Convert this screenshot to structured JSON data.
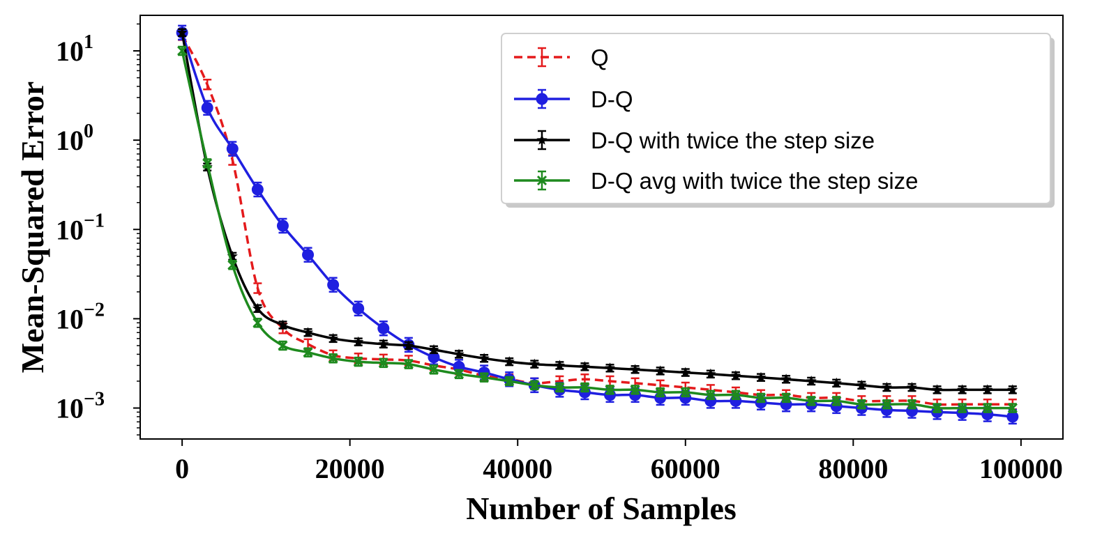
{
  "chart_data": {
    "type": "line",
    "title": "",
    "xlabel": "Number of Samples",
    "ylabel": "Mean-Squared Error",
    "xlim": [
      -5000,
      105000
    ],
    "ylim": [
      0.00045,
      25
    ],
    "yscale": "log",
    "grid": false,
    "legend_position": "top-right",
    "x_ticks": [
      {
        "value": 0,
        "label": "0"
      },
      {
        "value": 20000,
        "label": "20000"
      },
      {
        "value": 40000,
        "label": "40000"
      },
      {
        "value": 60000,
        "label": "60000"
      },
      {
        "value": 80000,
        "label": "80000"
      },
      {
        "value": 100000,
        "label": "100000"
      }
    ],
    "y_ticks": [
      {
        "value": 10,
        "base": "10",
        "exp": "1"
      },
      {
        "value": 1,
        "base": "10",
        "exp": "0"
      },
      {
        "value": 0.1,
        "base": "10",
        "exp": "−1"
      },
      {
        "value": 0.01,
        "base": "10",
        "exp": "−2"
      },
      {
        "value": 0.001,
        "base": "10",
        "exp": "−3"
      }
    ],
    "x": [
      0,
      3000,
      6000,
      9000,
      12000,
      15000,
      18000,
      21000,
      24000,
      27000,
      30000,
      33000,
      36000,
      39000,
      42000,
      45000,
      48000,
      51000,
      54000,
      57000,
      60000,
      63000,
      66000,
      69000,
      72000,
      75000,
      78000,
      81000,
      84000,
      87000,
      90000,
      93000,
      96000,
      99000
    ],
    "series": [
      {
        "name": "Q",
        "color": "#e41a1c",
        "linestyle": "dashed",
        "marker": "none",
        "values": [
          15,
          4.2,
          0.6,
          0.022,
          0.0078,
          0.0052,
          0.0039,
          0.0036,
          0.0035,
          0.0034,
          0.003,
          0.0027,
          0.0023,
          0.0021,
          0.0019,
          0.002,
          0.0021,
          0.002,
          0.0019,
          0.0018,
          0.0017,
          0.0016,
          0.0015,
          0.0014,
          0.0014,
          0.0013,
          0.0013,
          0.0012,
          0.0012,
          0.0012,
          0.0011,
          0.0011,
          0.0011,
          0.0011
        ]
      },
      {
        "name": "D-Q",
        "color": "#1f1fe0",
        "linestyle": "solid",
        "marker": "circle",
        "values": [
          16,
          2.3,
          0.8,
          0.28,
          0.11,
          0.052,
          0.024,
          0.013,
          0.0078,
          0.0051,
          0.0037,
          0.0029,
          0.0025,
          0.0021,
          0.0018,
          0.0016,
          0.0015,
          0.0014,
          0.0014,
          0.0013,
          0.0013,
          0.0012,
          0.0012,
          0.00115,
          0.0011,
          0.0011,
          0.00105,
          0.001,
          0.00095,
          0.00093,
          0.0009,
          0.00088,
          0.00085,
          0.0008
        ]
      },
      {
        "name": "D-Q with twice the step size",
        "color": "#000000",
        "linestyle": "solid",
        "marker": "star",
        "values": [
          16,
          0.5,
          0.05,
          0.013,
          0.0085,
          0.007,
          0.006,
          0.0055,
          0.0052,
          0.005,
          0.0045,
          0.004,
          0.0036,
          0.0033,
          0.0031,
          0.003,
          0.0029,
          0.0028,
          0.0027,
          0.0026,
          0.0025,
          0.0024,
          0.0023,
          0.0022,
          0.0021,
          0.002,
          0.0019,
          0.0018,
          0.0017,
          0.0017,
          0.0016,
          0.0016,
          0.0016,
          0.0016
        ]
      },
      {
        "name": "D-Q avg with twice the step size",
        "color": "#1e8a1e",
        "linestyle": "solid",
        "marker": "x",
        "values": [
          10,
          0.55,
          0.04,
          0.009,
          0.005,
          0.0042,
          0.0036,
          0.0033,
          0.0032,
          0.0031,
          0.0027,
          0.0024,
          0.0022,
          0.002,
          0.0018,
          0.0017,
          0.0017,
          0.0016,
          0.0016,
          0.0015,
          0.0015,
          0.0014,
          0.0014,
          0.0013,
          0.0013,
          0.0012,
          0.0012,
          0.0011,
          0.0011,
          0.0011,
          0.001,
          0.001,
          0.001,
          0.001
        ]
      }
    ]
  }
}
